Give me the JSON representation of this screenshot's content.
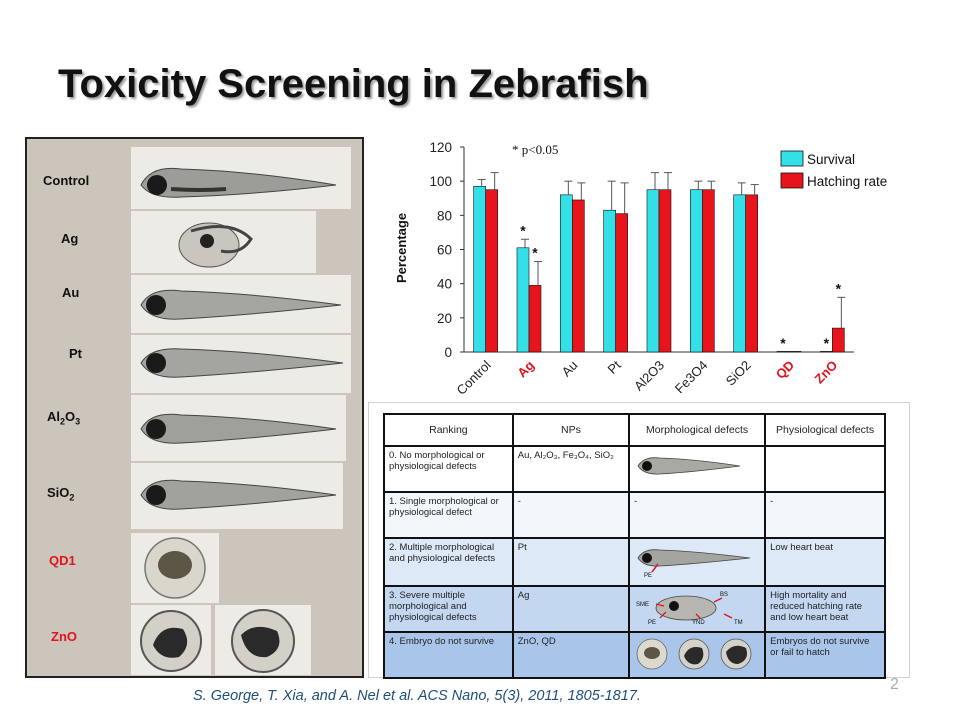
{
  "slide": {
    "title": "Toxicity Screening in Zebrafish",
    "citation": "S. George, T. Xia, and A. Nel et al. ACS Nano, 5(3), 2011, 1805-1817.",
    "page_number": "2"
  },
  "photo_panel": {
    "rows": [
      {
        "label": "Control",
        "sub": "",
        "red": false
      },
      {
        "label": "Ag",
        "sub": "",
        "red": false
      },
      {
        "label": "Au",
        "sub": "",
        "red": false
      },
      {
        "label": "Pt",
        "sub": "",
        "red": false
      },
      {
        "label": "Al",
        "sub": "2",
        "label2": "O",
        "sub2": "3",
        "red": false
      },
      {
        "label": "SiO",
        "sub": "2",
        "red": false
      },
      {
        "label": "QD1",
        "sub": "",
        "red": true
      },
      {
        "label": "ZnO",
        "sub": "",
        "red": true
      }
    ]
  },
  "chart_data": {
    "type": "bar",
    "title": "",
    "annotation": "* p<0.05",
    "ylabel": "Percentage",
    "xlabel": "",
    "ylim": [
      0,
      120
    ],
    "yticks": [
      0,
      20,
      40,
      60,
      80,
      100,
      120
    ],
    "categories": [
      "Control",
      "Ag",
      "Au",
      "Pt",
      "Al2O3",
      "Fe3O4",
      "SiO2",
      "QD",
      "ZnO"
    ],
    "red_categories": [
      "Ag",
      "QD",
      "ZnO"
    ],
    "series": [
      {
        "name": "Survival",
        "color": "#33e0e8",
        "values": [
          97,
          61,
          92,
          83,
          95,
          95,
          92,
          0,
          0
        ],
        "errors": [
          4,
          5,
          8,
          17,
          10,
          5,
          7,
          0,
          0
        ]
      },
      {
        "name": "Hatching rate",
        "color": "#e8141c",
        "values": [
          95,
          39,
          89,
          81,
          95,
          95,
          92,
          0,
          14
        ],
        "errors": [
          10,
          14,
          10,
          18,
          10,
          5,
          6,
          0,
          18
        ]
      }
    ],
    "significance": [
      {
        "category": "Ag",
        "series": 0,
        "text": "*"
      },
      {
        "category": "Ag",
        "series": 1,
        "text": "*"
      },
      {
        "category": "QD",
        "series": 0,
        "text": "*"
      },
      {
        "category": "ZnO",
        "series": 0,
        "text": "*"
      },
      {
        "category": "ZnO",
        "series": 1,
        "text": "*"
      }
    ],
    "legend_position": "top-right",
    "grid": false
  },
  "ranking_table": {
    "headers": [
      "Ranking",
      "NPs",
      "Morphological defects",
      "Physiological defects"
    ],
    "rows": [
      {
        "ranking": "0. No morphological or physiological defects",
        "nps": "Au, Al₂O₃, Fe₃O₄, SiO₂",
        "morph": "",
        "phys": ""
      },
      {
        "ranking": "1. Single morphological or physiological defect",
        "nps": "-",
        "morph": "-",
        "phys": "-"
      },
      {
        "ranking": "2. Multiple morphological and physiological defects",
        "nps": "Pt",
        "morph": "",
        "phys": "Low heart beat"
      },
      {
        "ranking": "3. Severe multiple morphological and physiological defects",
        "nps": "Ag",
        "morph": "",
        "phys": "High mortality and reduced hatching rate and low heart beat"
      },
      {
        "ranking": "4. Embryo do not survive",
        "nps": "ZnO, QD",
        "morph": "",
        "phys": "Embryos do not survive or fail to hatch"
      }
    ],
    "image_labels": {
      "pe": "PE",
      "bs": "BS",
      "sme": "SME",
      "ynd": "YND",
      "tm": "TM"
    }
  }
}
